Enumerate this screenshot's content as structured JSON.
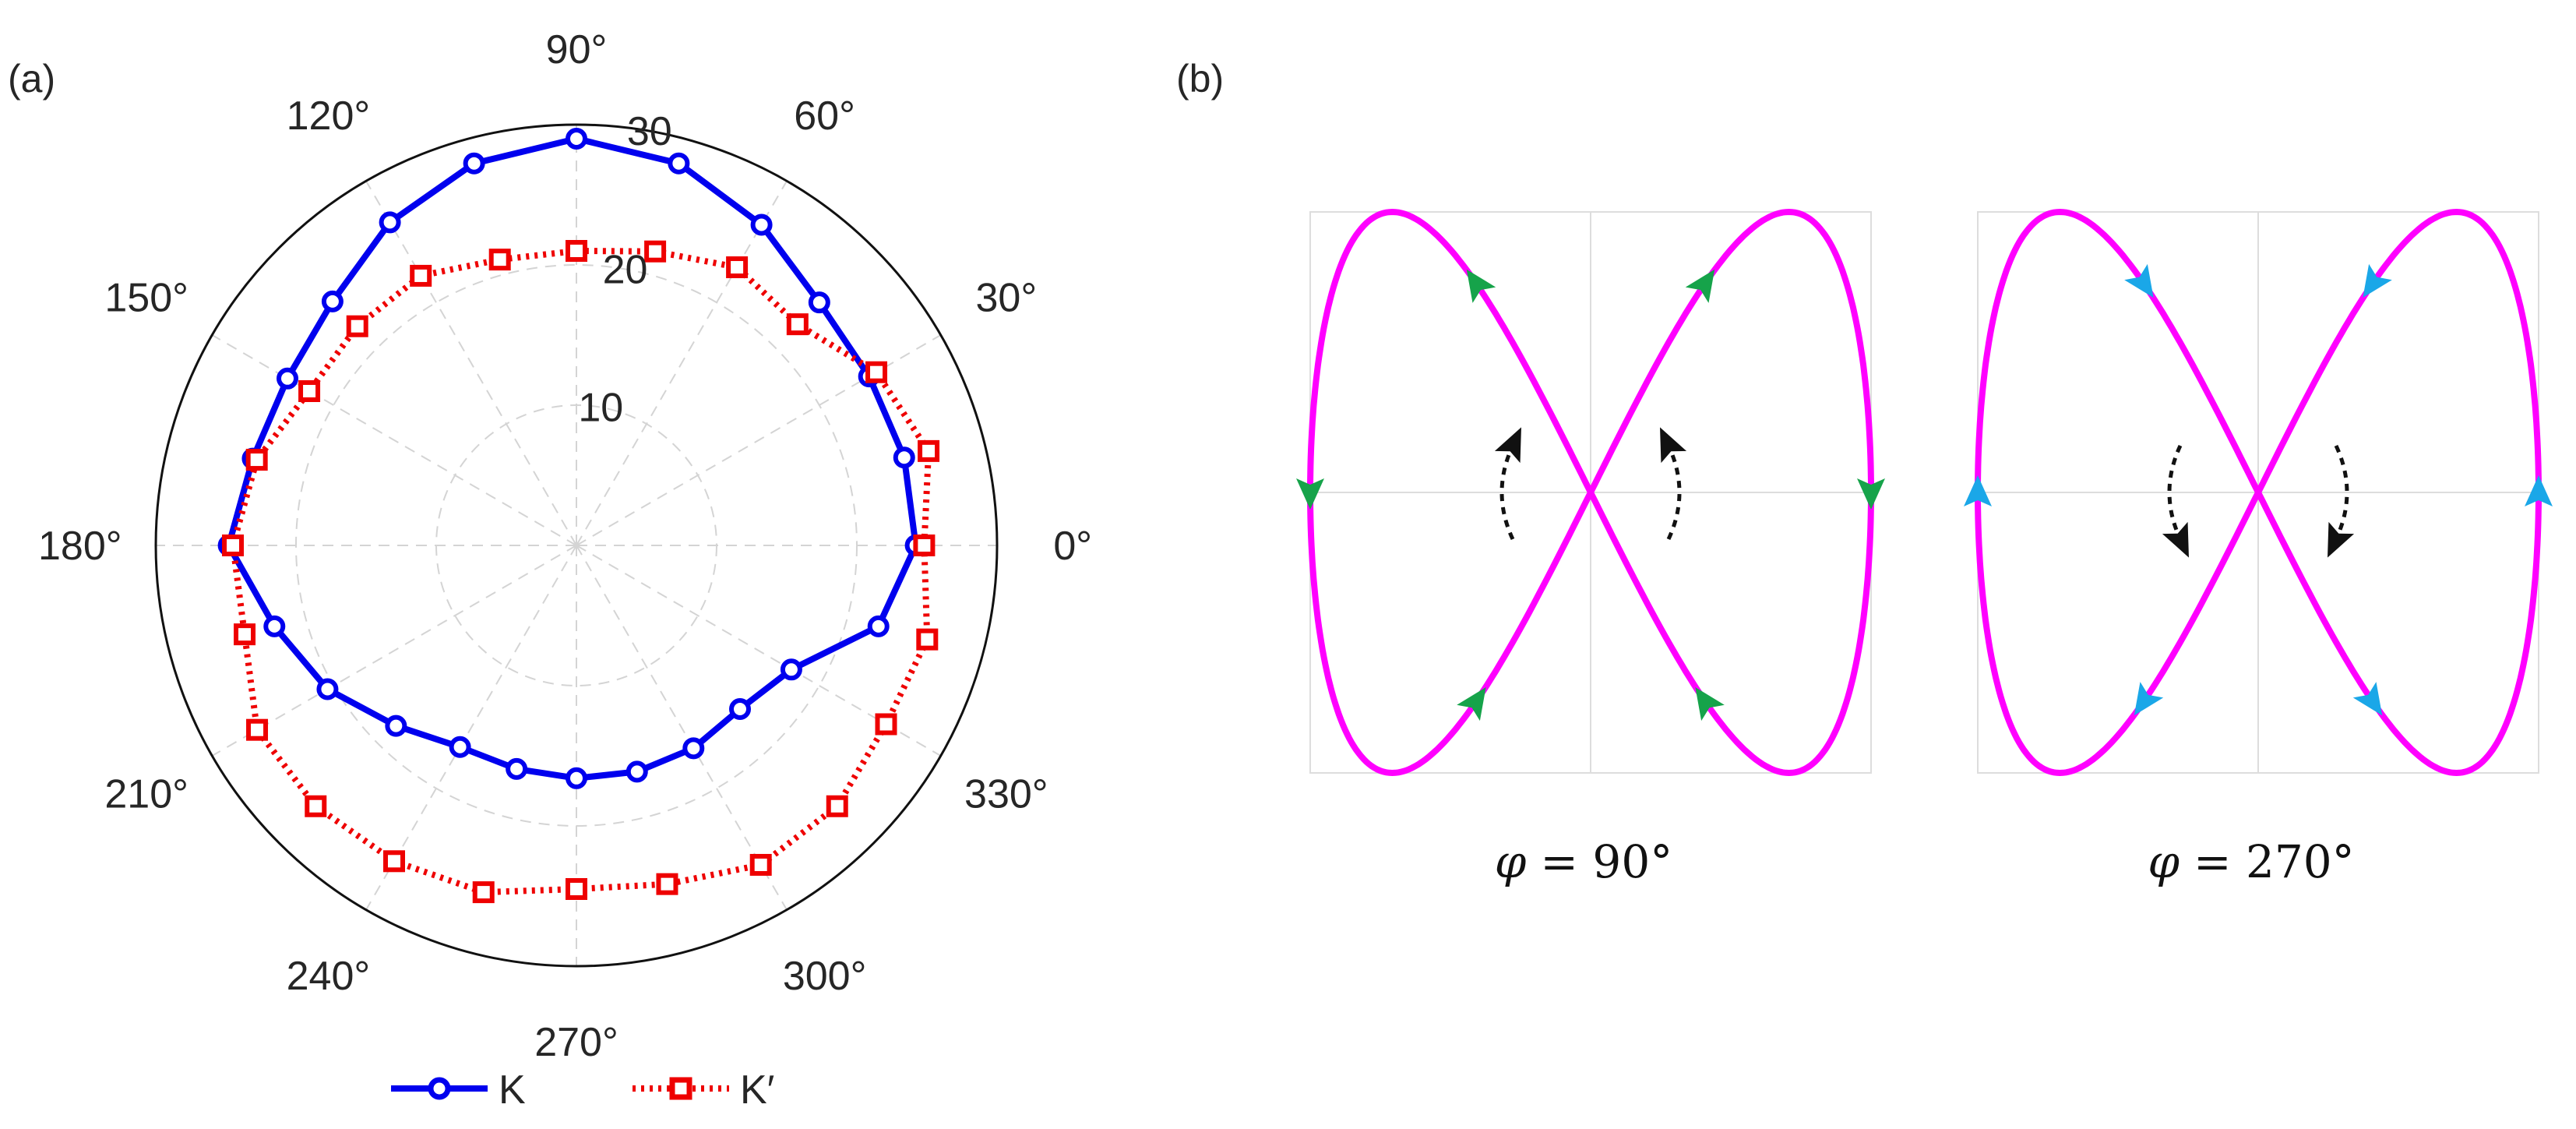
{
  "panel_a": {
    "label": "(a)",
    "chart_data": {
      "type": "polar-line",
      "theta_unit": "deg",
      "r_ticks": [
        "10",
        "20",
        "30"
      ],
      "r_tick_values": [
        10,
        20,
        30
      ],
      "r_max": 30,
      "angle_ticks": [
        {
          "angle": 0,
          "label": "0°"
        },
        {
          "angle": 30,
          "label": "30°"
        },
        {
          "angle": 60,
          "label": "60°"
        },
        {
          "angle": 90,
          "label": "90°"
        },
        {
          "angle": 120,
          "label": "120°"
        },
        {
          "angle": 150,
          "label": "150°"
        },
        {
          "angle": 180,
          "label": "180°"
        },
        {
          "angle": 210,
          "label": "210°"
        },
        {
          "angle": 240,
          "label": "240°"
        },
        {
          "angle": 270,
          "label": "270°"
        },
        {
          "angle": 300,
          "label": "300°"
        },
        {
          "angle": 330,
          "label": "330°"
        }
      ],
      "theta": [
        0,
        15,
        30,
        45,
        60,
        75,
        90,
        105,
        120,
        135,
        150,
        165,
        180,
        195,
        210,
        225,
        240,
        255,
        270,
        285,
        300,
        315,
        330,
        345
      ],
      "series": [
        {
          "name": "K",
          "color": "#0000ee",
          "line_style": "solid",
          "marker": "circle",
          "values": [
            24.2,
            24.2,
            24.1,
            24.5,
            26.4,
            28.2,
            29.0,
            28.2,
            26.6,
            24.6,
            23.8,
            23.9,
            24.8,
            22.3,
            20.5,
            18.2,
            16.6,
            16.5,
            16.6,
            16.7,
            16.7,
            16.5,
            17.7,
            22.3
          ]
        },
        {
          "name": "K′",
          "color": "#ee0000",
          "line_style": "dotted",
          "marker": "square",
          "values": [
            24.8,
            26.0,
            24.7,
            22.3,
            22.9,
            21.7,
            21.0,
            21.1,
            22.2,
            22.1,
            22.0,
            23.6,
            24.5,
            24.5,
            26.3,
            26.3,
            26.0,
            25.6,
            24.5,
            25.0,
            26.3,
            26.3,
            25.5,
            25.9
          ]
        }
      ]
    }
  },
  "panel_b": {
    "label": "(b)",
    "curve_color": "#ff00ff",
    "plots": [
      {
        "caption_symbol": "φ",
        "caption_eq": "= 90°",
        "arrow_color": "#16a34a",
        "rotation_sense": "counterclockwise",
        "loop_direction": "clockwise"
      },
      {
        "caption_symbol": "φ",
        "caption_eq": "= 270°",
        "arrow_color": "#1aa7e8",
        "rotation_sense": "clockwise",
        "loop_direction": "counterclockwise"
      }
    ]
  }
}
